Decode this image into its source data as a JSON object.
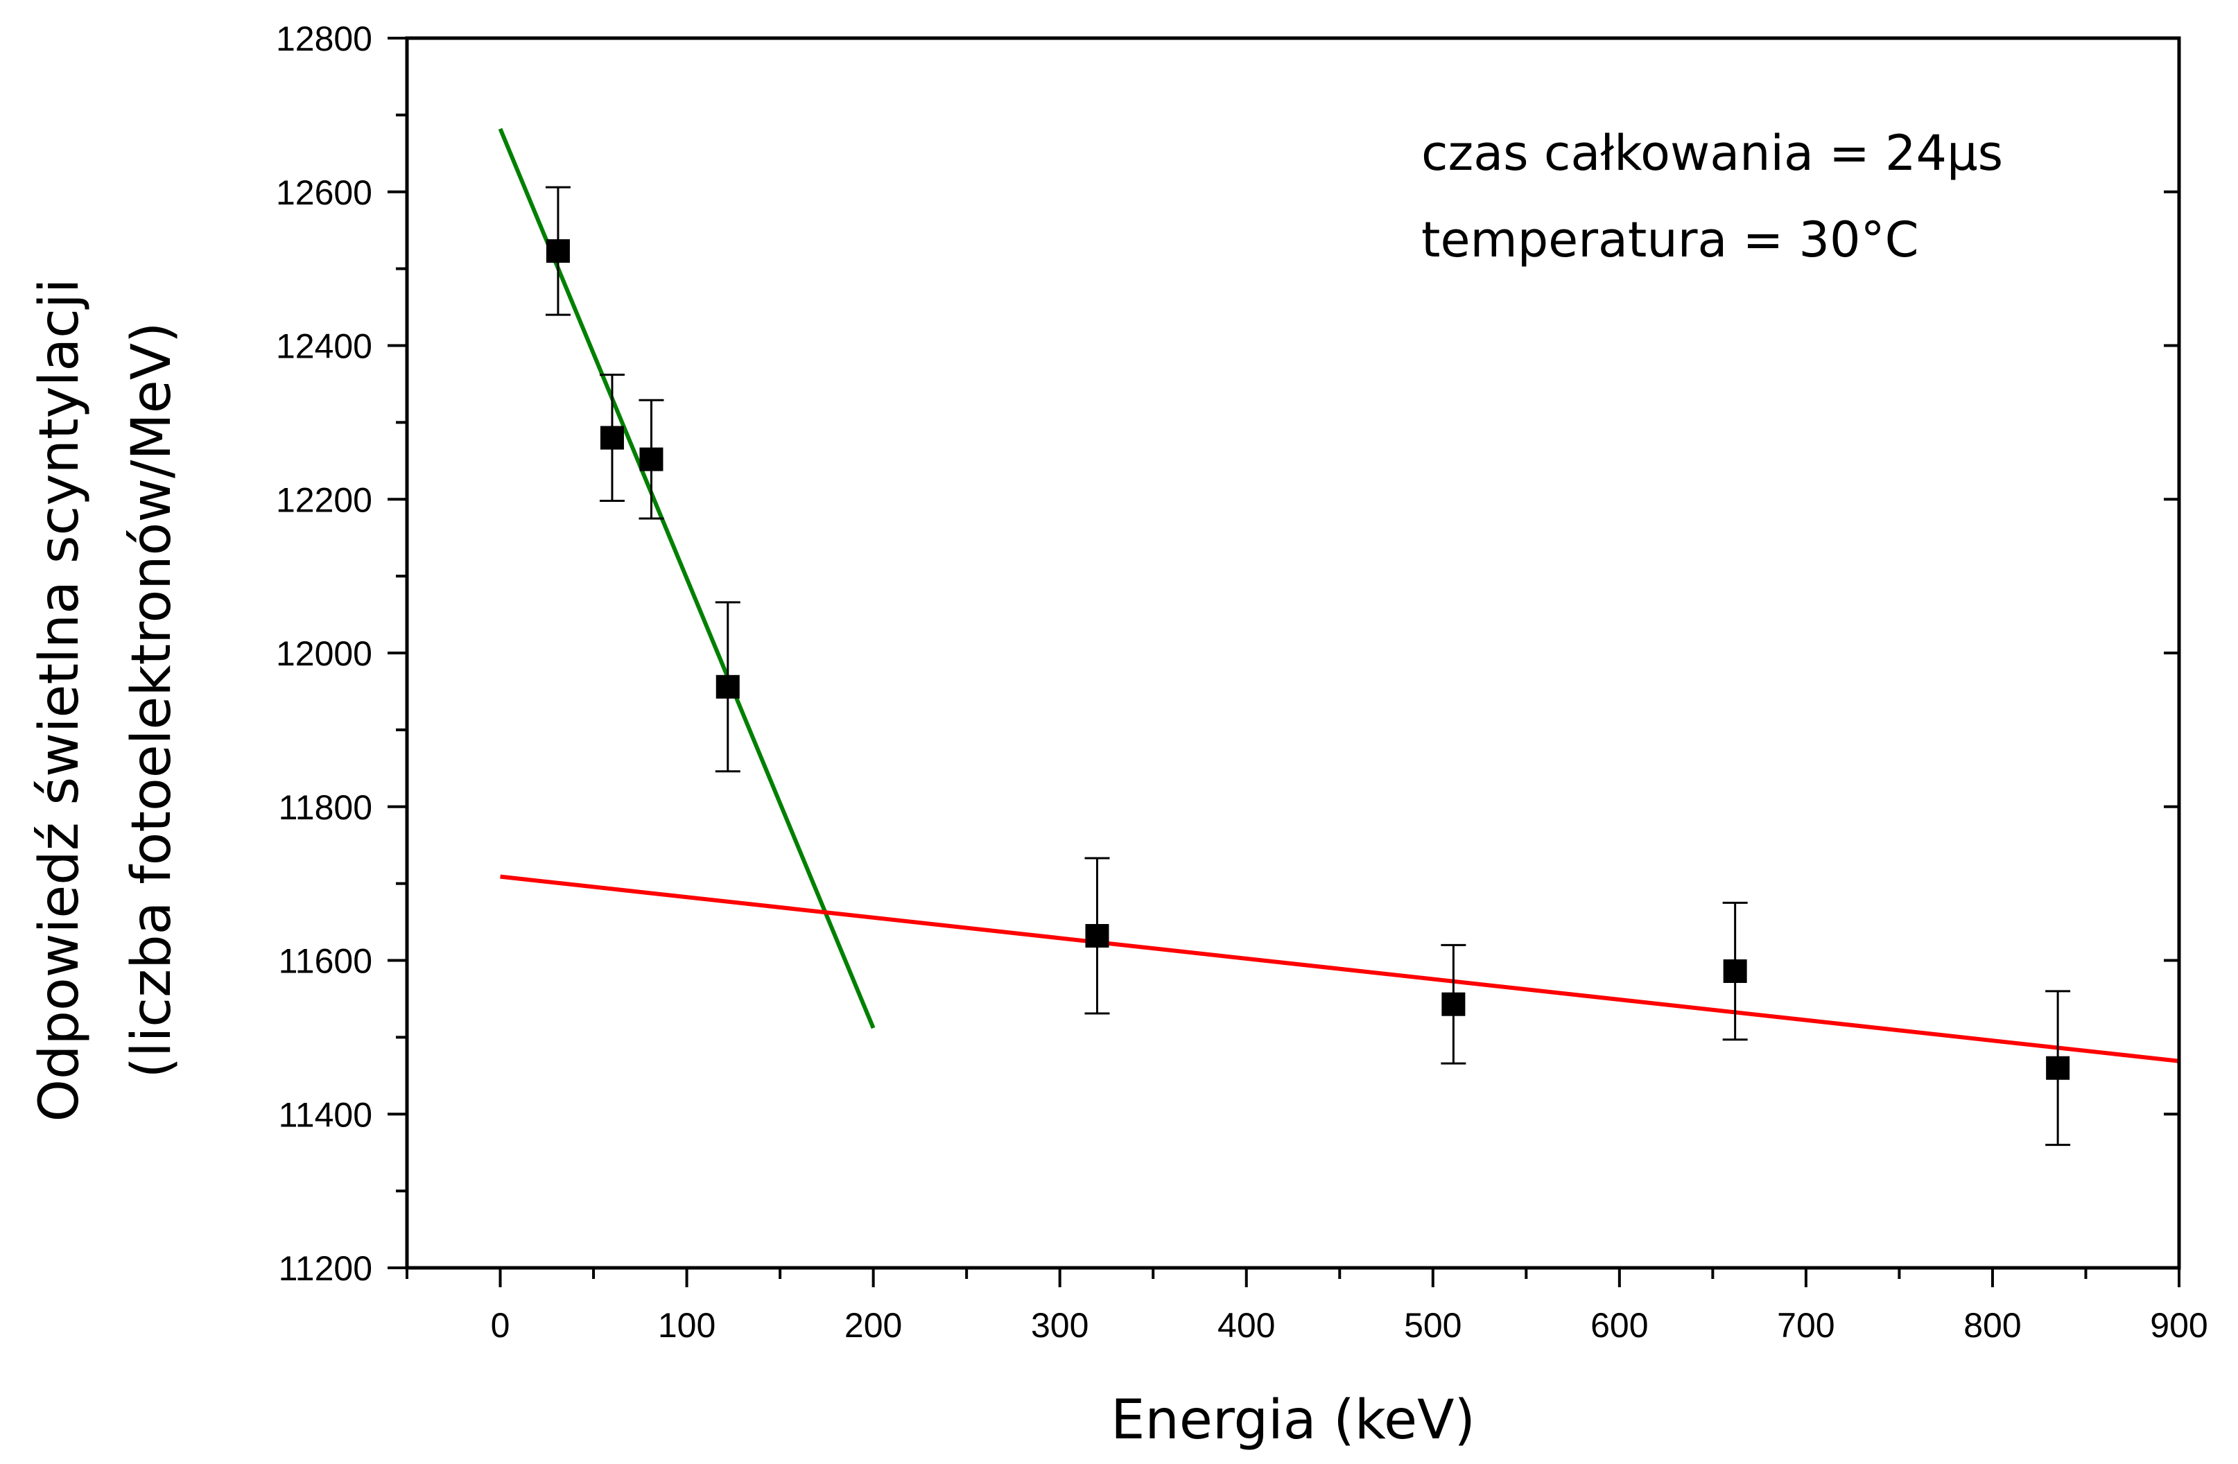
{
  "chart_data": {
    "type": "scatter",
    "xlabel": "Energia (keV)",
    "ylabel_line1": "Odpowiedź świetlna scyntylacji",
    "ylabel_line2": "(liczba fotoelektronów/MeV)",
    "xlim": [
      -50,
      900
    ],
    "ylim": [
      11200,
      12800
    ],
    "x_ticks": [
      0,
      100,
      200,
      300,
      400,
      500,
      600,
      700,
      800,
      900
    ],
    "y_ticks": [
      11200,
      11400,
      11600,
      11800,
      12000,
      12200,
      12400,
      12600,
      12800
    ],
    "x_tick_labels": [
      "0",
      "100",
      "200",
      "300",
      "400",
      "500",
      "600",
      "700",
      "800",
      "900"
    ],
    "y_tick_labels": [
      "11200",
      "11400",
      "11600",
      "11800",
      "12000",
      "12200",
      "12400",
      "12600",
      "12800"
    ],
    "annotations": [
      "czas całkowania = 24µs",
      "temperatura = 30°C"
    ],
    "series": [
      {
        "kind": "points",
        "color": "#000000",
        "points": [
          {
            "x": 31,
            "y": 12523,
            "err": 83
          },
          {
            "x": 60,
            "y": 12280,
            "err": 82
          },
          {
            "x": 81,
            "y": 12252,
            "err": 77
          },
          {
            "x": 122,
            "y": 11956,
            "err": 110
          },
          {
            "x": 320,
            "y": 11632,
            "err": 101
          },
          {
            "x": 511,
            "y": 11543,
            "err": 77
          },
          {
            "x": 662,
            "y": 11586,
            "err": 89
          },
          {
            "x": 835,
            "y": 11460,
            "err": 100
          }
        ]
      },
      {
        "kind": "fit-line",
        "color": "#008000",
        "x": [
          0,
          200
        ],
        "y": [
          12682,
          11512
        ]
      },
      {
        "kind": "fit-line",
        "color": "#ff0000",
        "x": [
          0,
          900
        ],
        "y": [
          11709,
          11469
        ]
      }
    ]
  }
}
